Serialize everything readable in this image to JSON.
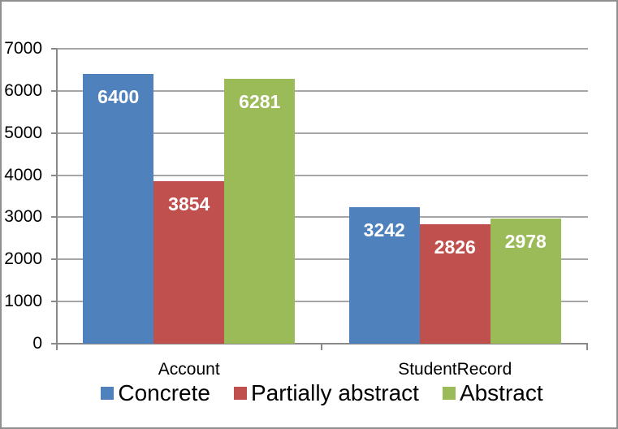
{
  "chart_data": {
    "type": "bar",
    "categories": [
      "Account",
      "StudentRecord"
    ],
    "series": [
      {
        "name": "Concrete",
        "color": "#4F81BD",
        "values": [
          6400,
          3242
        ]
      },
      {
        "name": "Partially abstract",
        "color": "#C0504D",
        "values": [
          3854,
          2826
        ]
      },
      {
        "name": "Abstract",
        "color": "#9BBB59",
        "values": [
          6281,
          2978
        ]
      }
    ],
    "title": "",
    "xlabel": "",
    "ylabel": "",
    "ylim": [
      0,
      7000
    ],
    "ytick_step": 1000,
    "ytick_labels": [
      "7000",
      "6000",
      "5000",
      "4000",
      "3000",
      "2000",
      "1000",
      "0"
    ],
    "grid": true,
    "legend_position": "bottom",
    "data_labels_shown": true,
    "data_label_color": "#FFFFFF"
  },
  "colors": {
    "gridline": "#A6A6A6",
    "axis": "#898989",
    "frame_border": "#8F8F8F",
    "background": "#FFFFFF",
    "text": "#000000"
  }
}
